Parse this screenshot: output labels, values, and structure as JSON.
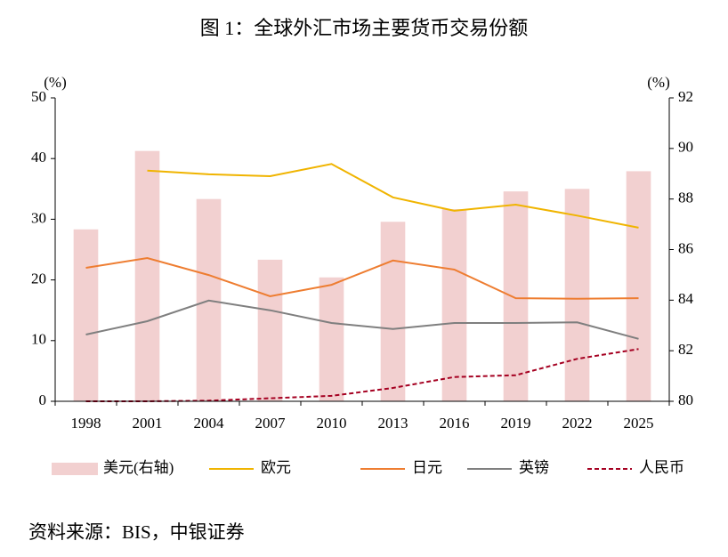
{
  "chart_data": {
    "type": "bar",
    "title": "图 1：全球外汇市场主要货币交易份额",
    "y_unit": "(%)",
    "y2_unit": "(%)",
    "source": "资料来源：BIS，中银证券",
    "categories": [
      "1998",
      "2001",
      "2004",
      "2007",
      "2010",
      "2013",
      "2016",
      "2019",
      "2022",
      "2025"
    ],
    "ylim": [
      0,
      50
    ],
    "yticks": [
      0,
      10,
      20,
      30,
      40,
      50
    ],
    "y2lim": [
      80,
      92
    ],
    "y2ticks": [
      80,
      82,
      84,
      86,
      88,
      90,
      92
    ],
    "series": [
      {
        "name": "美元(右轴)",
        "type": "bar",
        "axis": "y2",
        "color": "#f2d0d0",
        "values": [
          86.8,
          89.9,
          88.0,
          85.6,
          84.9,
          87.1,
          87.6,
          88.3,
          88.4,
          89.1
        ]
      },
      {
        "name": "欧元",
        "type": "line",
        "color": "#f0b400",
        "values": [
          null,
          38.0,
          37.4,
          37.1,
          39.1,
          33.6,
          31.4,
          32.4,
          30.6,
          28.6
        ]
      },
      {
        "name": "日元",
        "type": "line",
        "color": "#ee7d31",
        "values": [
          22.0,
          23.6,
          20.8,
          17.3,
          19.2,
          23.2,
          21.7,
          17.0,
          16.9,
          17.0
        ]
      },
      {
        "name": "英镑",
        "type": "line",
        "color": "#7f7f7f",
        "values": [
          11.0,
          13.2,
          16.6,
          15.0,
          12.9,
          11.9,
          12.9,
          12.9,
          13.0,
          10.3
        ]
      },
      {
        "name": "人民币",
        "type": "line",
        "dash": true,
        "color": "#a50021",
        "values": [
          0,
          0,
          0.1,
          0.5,
          0.9,
          2.2,
          4.0,
          4.3,
          7.0,
          8.6
        ]
      }
    ]
  }
}
